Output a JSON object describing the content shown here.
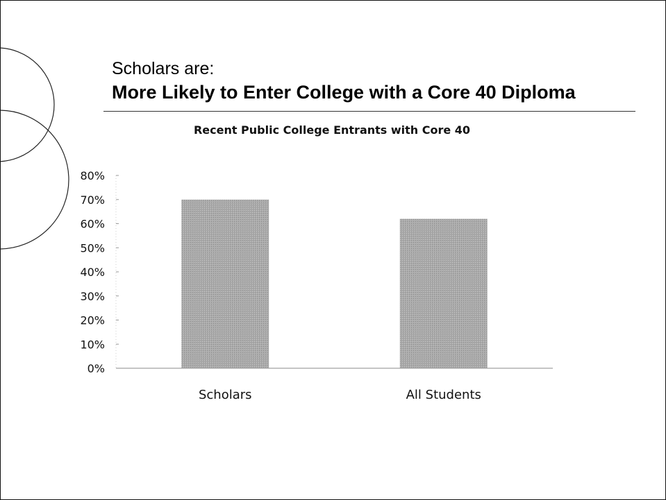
{
  "slide": {
    "subtitle": "Scholars are:",
    "title": "More Likely to Enter College with a Core 40 Diploma"
  },
  "chart_data": {
    "type": "bar",
    "title": "Recent Public College Entrants with Core 40",
    "categories": [
      "Scholars",
      "All Students"
    ],
    "values": [
      0.7,
      0.62
    ],
    "ylim": [
      0,
      0.8
    ],
    "yticks": [
      "0%",
      "10%",
      "20%",
      "30%",
      "40%",
      "50%",
      "60%",
      "70%",
      "80%"
    ],
    "xlabel": "",
    "ylabel": "",
    "grid": false,
    "legend": "none",
    "bar_color": "#aaaaaa"
  }
}
